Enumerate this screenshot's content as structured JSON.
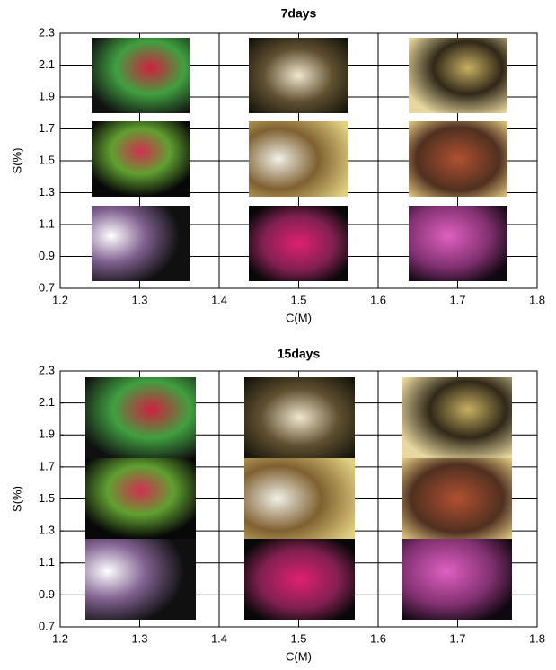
{
  "chart_data": [
    {
      "type": "image-grid",
      "title": "7days",
      "xlabel": "C(M)",
      "ylabel": "S(%)",
      "xlim": [
        1.2,
        1.8
      ],
      "xticks": [
        1.2,
        1.3,
        1.4,
        1.5,
        1.6,
        1.7,
        1.8
      ],
      "ylim": [
        0.7,
        2.3
      ],
      "yticks": [
        0.7,
        0.9,
        1.1,
        1.3,
        1.5,
        1.7,
        1.9,
        2.1,
        2.3
      ],
      "grid": true
    },
    {
      "type": "image-grid",
      "title": "15days",
      "xlabel": "C(M)",
      "ylabel": "S(%)",
      "xlim": [
        1.2,
        1.8
      ],
      "xticks": [
        1.2,
        1.3,
        1.4,
        1.5,
        1.6,
        1.7,
        1.8
      ],
      "ylim": [
        0.7,
        2.3
      ],
      "yticks": [
        0.7,
        0.9,
        1.1,
        1.3,
        1.5,
        1.7,
        1.9,
        2.1,
        2.3
      ],
      "grid": true
    }
  ]
}
